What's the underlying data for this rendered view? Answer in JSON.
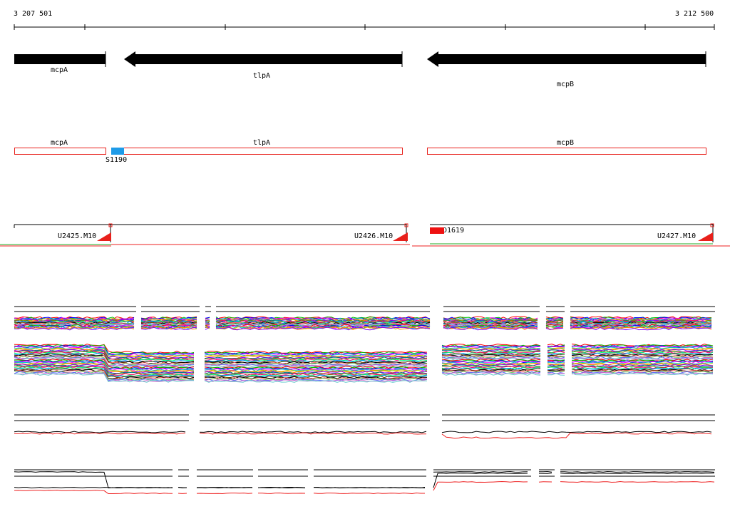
{
  "coords": {
    "start_label": "3 207 501",
    "end_label": "3 212 500"
  },
  "genes": [
    {
      "name": "mcpA",
      "strand": "-"
    },
    {
      "name": "tlpA",
      "strand": "-"
    },
    {
      "name": "mcpB",
      "strand": "-"
    }
  ],
  "features": {
    "regulatory_site": "S1190"
  },
  "transcripts": [
    {
      "name": "U2425.M10"
    },
    {
      "name": "U2426.M10"
    },
    {
      "name": "U2427.M10"
    }
  ],
  "downregulated_label": "D1619",
  "colors": {
    "gene_arrow": "#000000",
    "gene_outline": "#e8201b",
    "site": "#1e9be8",
    "transcript_flag": "#e8201b",
    "downregulated": "#ee1111",
    "baseline_green": "#22aa22",
    "baseline_red": "#ee2222"
  },
  "expression_tracks": [
    "condition-profiles-upper",
    "condition-profiles-lower",
    "summary-profiles-1",
    "summary-profiles-2"
  ],
  "profile_palette": [
    "#ff0000",
    "#00c000",
    "#0000ff",
    "#ff00ff",
    "#00c8c8",
    "#c8c800",
    "#ff8000",
    "#8000ff",
    "#008080",
    "#808000",
    "#ff0080",
    "#00ff80",
    "#0080ff",
    "#804000",
    "#000000",
    "#ff6666",
    "#66cc66",
    "#6666ff",
    "#cc66cc",
    "#66cccc"
  ]
}
